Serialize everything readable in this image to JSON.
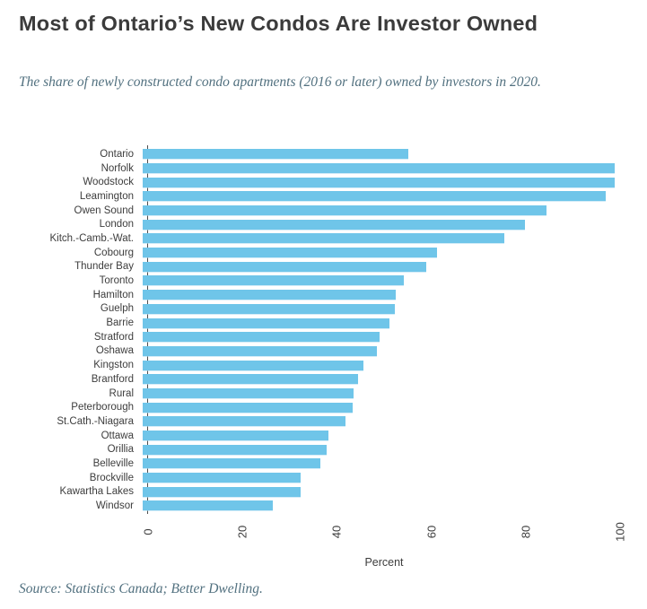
{
  "header": {
    "title": "Most of Ontario’s New Condos Are Investor Owned",
    "subtitle": "The share of newly constructed condo apartments (2016 or later) owned by investors in 2020."
  },
  "chart_data": {
    "type": "bar",
    "orientation": "horizontal",
    "title": "Most of Ontario’s New Condos Are Investor Owned",
    "subtitle": "The share of newly constructed condo apartments (2016 or later) owned by investors in 2020.",
    "categories": [
      "Ontario",
      "Norfolk",
      "Woodstock",
      "Leamington",
      "Owen Sound",
      "London",
      "Kitch.-Camb.-Wat.",
      "Cobourg",
      "Thunder Bay",
      "Toronto",
      "Hamilton",
      "Guelph",
      "Barrie",
      "Stratford",
      "Oshawa",
      "Kingston",
      "Brantford",
      "Rural",
      "Peterborough",
      "St.Cath.-Niagara",
      "Ottawa",
      "Orillia",
      "Belleville",
      "Brockville",
      "Kawartha Lakes",
      "Windsor"
    ],
    "values": [
      56.4,
      100,
      100,
      98.1,
      85.7,
      81.0,
      76.8,
      62.5,
      60.1,
      55.5,
      53.7,
      53.5,
      52.3,
      50.2,
      49.7,
      46.9,
      45.7,
      44.8,
      44.6,
      43.0,
      39.4,
      39.0,
      37.7,
      33.5,
      33.5,
      27.6
    ],
    "xlabel": "Percent",
    "xticks": [
      0,
      20,
      40,
      60,
      80,
      100
    ],
    "xlim": [
      0,
      100
    ],
    "bar_color": "#6FC5E9",
    "axis_color": "#4d4d4d",
    "grid": false,
    "legend": "none"
  },
  "colors": {
    "title": "#3b3b3b",
    "subtitle": "#51707f",
    "bar": "#6FC5E9"
  },
  "footer": {
    "source": "Source: Statistics Canada; Better Dwelling."
  }
}
